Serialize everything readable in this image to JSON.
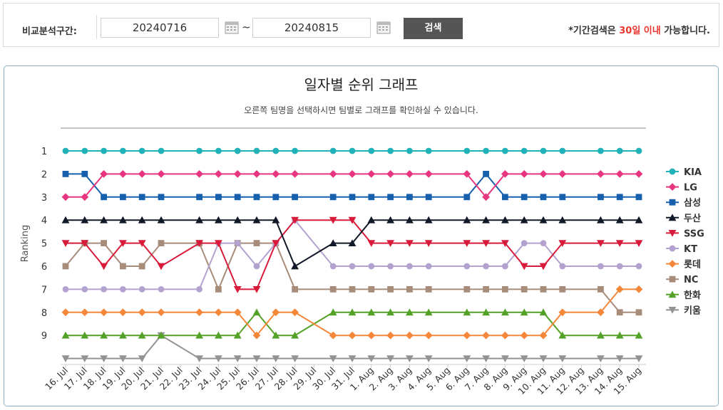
{
  "search": {
    "label": "비교분석구간:",
    "start_date": "20240716",
    "tilde": "~",
    "end_date": "20240815",
    "button": "검색",
    "note_prefix": "*기간검색은 ",
    "note_highlight": "30일 이내",
    "note_suffix": " 가능합니다."
  },
  "chart_title": "일자별 순위 그래프",
  "chart_subtitle": "오른쪽 팀명을 선택하시면 팀별로 그래프를 확인하실 수 있습니다.",
  "chart_data": {
    "type": "line",
    "ylabel": "Ranking",
    "xlabel": "",
    "ylim": [
      1,
      10
    ],
    "y_inverted": true,
    "yticks": [
      "1",
      "2",
      "3",
      "4",
      "5",
      "6",
      "7",
      "8",
      "9"
    ],
    "legend_position": "right",
    "categories": [
      "16. Jul",
      "17. Jul",
      "18. Jul",
      "19. Jul",
      "20. Jul",
      "21. Jul",
      "22. Jul",
      "23. Jul",
      "24. Jul",
      "25. Jul",
      "26. Jul",
      "27. Jul",
      "28. Jul",
      "29. Jul",
      "30. Jul",
      "31. Jul",
      "1. Aug",
      "2. Aug",
      "3. Aug",
      "4. Aug",
      "5. Aug",
      "6. Aug",
      "7. Aug",
      "8. Aug",
      "9. Aug",
      "10. Aug",
      "11. Aug",
      "12. Aug",
      "13. Aug",
      "14. Aug",
      "15. Aug"
    ],
    "series": [
      {
        "name": "KIA",
        "color": "#20b2b8",
        "marker": "circle",
        "values": [
          1,
          1,
          1,
          1,
          1,
          1,
          null,
          1,
          1,
          1,
          1,
          1,
          1,
          null,
          1,
          1,
          1,
          1,
          1,
          1,
          null,
          1,
          1,
          1,
          1,
          1,
          1,
          null,
          1,
          1,
          1
        ]
      },
      {
        "name": "LG",
        "color": "#e8357f",
        "marker": "diamond",
        "values": [
          3,
          3,
          2,
          2,
          2,
          2,
          null,
          2,
          2,
          2,
          2,
          2,
          2,
          null,
          2,
          2,
          2,
          2,
          2,
          2,
          null,
          2,
          3,
          2,
          2,
          2,
          2,
          null,
          2,
          2,
          2
        ]
      },
      {
        "name": "삼성",
        "color": "#1760ad",
        "marker": "square",
        "values": [
          2,
          2,
          3,
          3,
          3,
          3,
          null,
          3,
          3,
          3,
          3,
          3,
          3,
          null,
          3,
          3,
          3,
          3,
          3,
          3,
          null,
          3,
          2,
          3,
          3,
          3,
          3,
          null,
          3,
          3,
          3
        ]
      },
      {
        "name": "두산",
        "color": "#111827",
        "marker": "triangle",
        "values": [
          4,
          4,
          4,
          4,
          4,
          4,
          null,
          4,
          4,
          4,
          4,
          4,
          6,
          null,
          5,
          5,
          4,
          4,
          4,
          4,
          null,
          4,
          4,
          4,
          4,
          4,
          4,
          null,
          4,
          4,
          4
        ]
      },
      {
        "name": "SSG",
        "color": "#d81b3b",
        "marker": "triangle-down",
        "values": [
          5,
          5,
          6,
          5,
          5,
          6,
          null,
          5,
          5,
          7,
          7,
          5,
          4,
          null,
          4,
          4,
          5,
          5,
          5,
          5,
          null,
          5,
          5,
          5,
          6,
          6,
          5,
          null,
          5,
          5,
          5
        ]
      },
      {
        "name": "KT",
        "color": "#b3a2cf",
        "marker": "circle",
        "values": [
          7,
          7,
          7,
          7,
          7,
          7,
          null,
          7,
          5,
          5,
          6,
          5,
          4,
          null,
          6,
          6,
          6,
          6,
          6,
          6,
          null,
          6,
          6,
          6,
          5,
          5,
          6,
          null,
          6,
          6,
          6
        ]
      },
      {
        "name": "롯데",
        "color": "#f5873b",
        "marker": "diamond",
        "values": [
          8,
          8,
          8,
          8,
          8,
          8,
          null,
          8,
          8,
          8,
          9,
          8,
          8,
          null,
          9,
          9,
          9,
          9,
          9,
          9,
          null,
          9,
          9,
          9,
          9,
          9,
          8,
          null,
          8,
          7,
          7
        ]
      },
      {
        "name": "NC",
        "color": "#a88c7a",
        "marker": "square",
        "values": [
          6,
          5,
          5,
          6,
          6,
          5,
          null,
          5,
          7,
          5,
          5,
          5,
          7,
          null,
          7,
          7,
          7,
          7,
          7,
          7,
          null,
          7,
          7,
          7,
          7,
          7,
          7,
          null,
          7,
          8,
          8
        ]
      },
      {
        "name": "한화",
        "color": "#53a126",
        "marker": "triangle",
        "values": [
          9,
          9,
          9,
          9,
          9,
          9,
          null,
          9,
          9,
          9,
          8,
          9,
          9,
          null,
          8,
          8,
          8,
          8,
          8,
          8,
          null,
          8,
          8,
          8,
          8,
          8,
          9,
          null,
          9,
          9,
          9
        ]
      },
      {
        "name": "키움",
        "color": "#939393",
        "marker": "triangle-down",
        "values": [
          10,
          10,
          10,
          10,
          10,
          9,
          null,
          10,
          10,
          10,
          10,
          10,
          10,
          null,
          10,
          10,
          10,
          10,
          10,
          10,
          null,
          10,
          10,
          10,
          10,
          10,
          10,
          null,
          10,
          10,
          10
        ]
      }
    ]
  }
}
